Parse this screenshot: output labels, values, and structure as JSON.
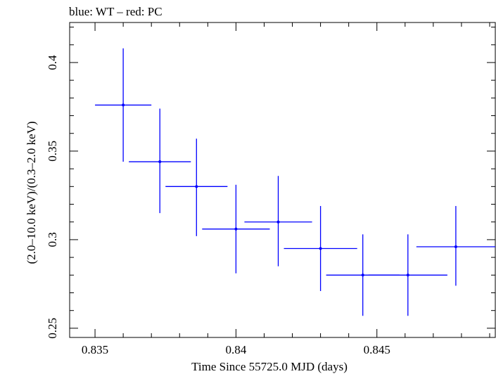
{
  "chart_data": {
    "type": "scatter",
    "title": "blue: WT – red: PC",
    "xlabel": "Time Since 55725.0 MJD (days)",
    "ylabel": "(2.0–10.0 keV)/(0.3–2.0 keV)",
    "xlim": [
      0.8341,
      0.8492
    ],
    "ylim": [
      0.2448,
      0.4226
    ],
    "x_ticks": [
      0.835,
      0.84,
      0.845
    ],
    "x_tick_labels": [
      "0.835",
      "0.84",
      "0.845"
    ],
    "y_ticks": [
      0.25,
      0.3,
      0.35,
      0.4
    ],
    "y_tick_labels": [
      "0.25",
      "0.3",
      "0.35",
      "0.4"
    ],
    "grid": false,
    "series": [
      {
        "color": "#0000ff",
        "points": [
          {
            "x": 0.836,
            "y": 0.376,
            "xerr": 0.001,
            "ylo": 0.344,
            "yhi": 0.408
          },
          {
            "x": 0.8373,
            "y": 0.344,
            "xerr": 0.0011,
            "ylo": 0.315,
            "yhi": 0.374
          },
          {
            "x": 0.8386,
            "y": 0.33,
            "xerr": 0.0011,
            "ylo": 0.302,
            "yhi": 0.357
          },
          {
            "x": 0.84,
            "y": 0.306,
            "xerr": 0.0012,
            "ylo": 0.281,
            "yhi": 0.331
          },
          {
            "x": 0.8415,
            "y": 0.31,
            "xerr": 0.0012,
            "ylo": 0.285,
            "yhi": 0.336
          },
          {
            "x": 0.843,
            "y": 0.295,
            "xerr": 0.0013,
            "ylo": 0.271,
            "yhi": 0.319
          },
          {
            "x": 0.8445,
            "y": 0.28,
            "xerr": 0.0013,
            "ylo": 0.257,
            "yhi": 0.303
          },
          {
            "x": 0.8461,
            "y": 0.28,
            "xerr": 0.0014,
            "ylo": 0.257,
            "yhi": 0.303
          },
          {
            "x": 0.8478,
            "y": 0.296,
            "xerr": 0.0014,
            "ylo": 0.274,
            "yhi": 0.319
          }
        ]
      }
    ]
  }
}
